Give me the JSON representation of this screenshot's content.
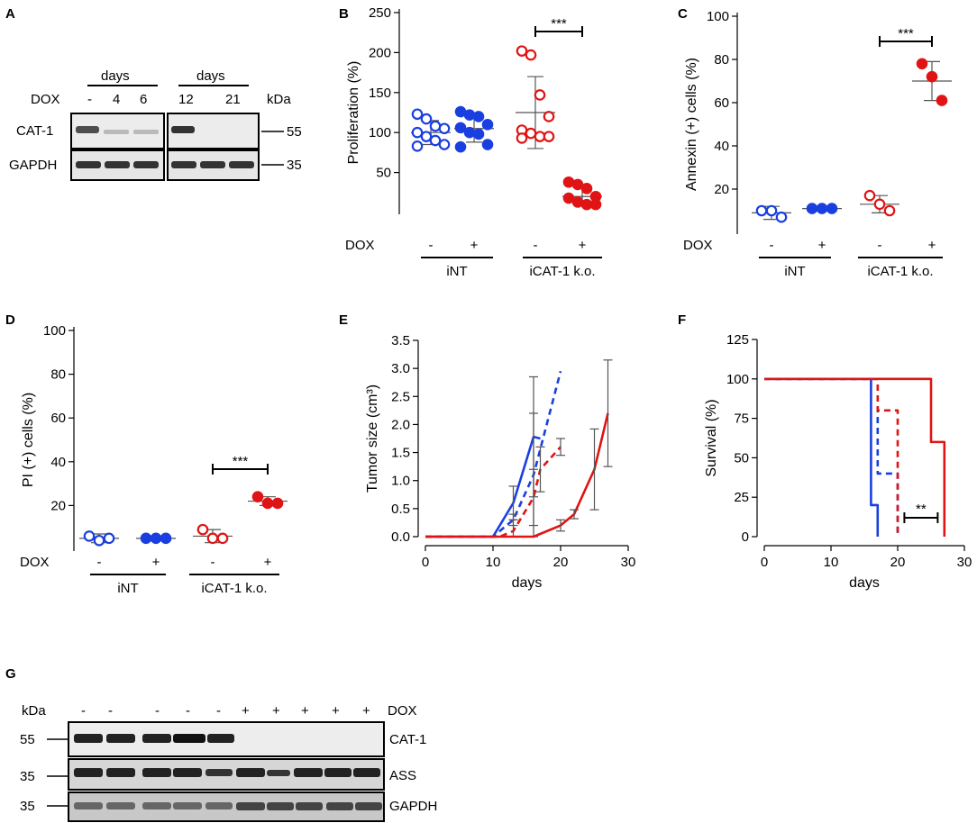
{
  "panel_labels": [
    "A",
    "B",
    "C",
    "D",
    "E",
    "F",
    "G"
  ],
  "colors": {
    "blue": "#1a3fe0",
    "red": "#e01414",
    "gray": "#555555"
  },
  "blot_a": {
    "header_left": "days",
    "header_right": "days",
    "dox_label": "DOX",
    "kda_label": "kDa",
    "lanes_left": [
      "-",
      "4",
      "6"
    ],
    "lanes_right": [
      "12",
      "21"
    ],
    "bands": [
      "CAT-1",
      "GAPDH"
    ],
    "kda_values": [
      "55",
      "35"
    ]
  },
  "blot_g": {
    "kda_label": "kDa",
    "dox_label": "DOX",
    "lanes": [
      "-",
      "-",
      "-",
      "-",
      "-",
      "+",
      "+",
      "+",
      "+",
      "+"
    ],
    "bands": [
      "CAT-1",
      "ASS",
      "GAPDH"
    ],
    "kda_values": [
      "55",
      "35",
      "35"
    ]
  },
  "chart_data": [
    {
      "panel": "B",
      "type": "scatter",
      "ylabel": "Proliferation (%)",
      "ylim": [
        0,
        250
      ],
      "yticks": [
        "50",
        "100",
        "150",
        "200",
        "250"
      ],
      "row_label": "DOX",
      "categories": [
        "-",
        "+",
        "-",
        "+"
      ],
      "groups": [
        "iNT",
        "iCAT-1 k.o."
      ],
      "series": [
        {
          "name": "iNT -",
          "filled": false,
          "color": "blue",
          "mean": 100,
          "sd": 15,
          "values": [
            123,
            117,
            108,
            105,
            100,
            95,
            90,
            85,
            83
          ]
        },
        {
          "name": "iNT +",
          "filled": true,
          "color": "blue",
          "mean": 105,
          "sd": 17,
          "values": [
            126,
            122,
            120,
            110,
            106,
            100,
            98,
            85,
            82
          ]
        },
        {
          "name": "iCAT-1 k.o. -",
          "filled": false,
          "color": "red",
          "mean": 125,
          "sd": 45,
          "values": [
            202,
            197,
            147,
            120,
            103,
            99,
            95,
            95,
            93
          ]
        },
        {
          "name": "iCAT-1 k.o. +",
          "filled": true,
          "color": "red",
          "mean": 20,
          "sd": 12,
          "values": [
            38,
            35,
            30,
            20,
            18,
            13,
            10,
            10
          ]
        }
      ],
      "significance": "***"
    },
    {
      "panel": "C",
      "type": "scatter",
      "ylabel": "Annexin  (+) cells (%)",
      "ylim": [
        0,
        100
      ],
      "yticks": [
        "20",
        "40",
        "60",
        "80",
        "100"
      ],
      "row_label": "DOX",
      "categories": [
        "-",
        "+",
        "-",
        "+"
      ],
      "groups": [
        "iNT",
        "iCAT-1 k.o."
      ],
      "series": [
        {
          "name": "iNT -",
          "filled": false,
          "color": "blue",
          "mean": 9,
          "sd": 3,
          "values": [
            10,
            10,
            7
          ]
        },
        {
          "name": "iNT +",
          "filled": true,
          "color": "blue",
          "mean": 11,
          "sd": 1,
          "values": [
            11,
            11,
            11
          ]
        },
        {
          "name": "iCAT-1 k.o. -",
          "filled": false,
          "color": "red",
          "mean": 13,
          "sd": 4,
          "values": [
            17,
            13,
            10
          ]
        },
        {
          "name": "iCAT-1 k.o. +",
          "filled": true,
          "color": "red",
          "mean": 70,
          "sd": 9,
          "values": [
            78,
            72,
            61
          ]
        }
      ],
      "significance": "***"
    },
    {
      "panel": "D",
      "type": "scatter",
      "ylabel": "PI (+) cells (%)",
      "ylim": [
        0,
        100
      ],
      "yticks": [
        "20",
        "40",
        "60",
        "80",
        "100"
      ],
      "row_label": "DOX",
      "categories": [
        "-",
        "+",
        "-",
        "+"
      ],
      "groups": [
        "iNT",
        "iCAT-1 k.o."
      ],
      "series": [
        {
          "name": "iNT -",
          "filled": false,
          "color": "blue",
          "mean": 5,
          "sd": 2,
          "values": [
            6,
            4,
            5
          ]
        },
        {
          "name": "iNT +",
          "filled": true,
          "color": "blue",
          "mean": 5,
          "sd": 1,
          "values": [
            5,
            5,
            5
          ]
        },
        {
          "name": "iCAT-1 k.o. -",
          "filled": false,
          "color": "red",
          "mean": 6,
          "sd": 3,
          "values": [
            9,
            5,
            5
          ]
        },
        {
          "name": "iCAT-1 k.o. +",
          "filled": true,
          "color": "red",
          "mean": 22,
          "sd": 2,
          "values": [
            24,
            21,
            21
          ]
        }
      ],
      "significance": "***"
    },
    {
      "panel": "E",
      "type": "line",
      "xlabel": "days",
      "ylabel": "Tumor size (cm³)",
      "xlim": [
        0,
        30
      ],
      "ylim": [
        0,
        3.5
      ],
      "xticks": [
        "0",
        "10",
        "20",
        "30"
      ],
      "yticks": [
        "0.0",
        "0.5",
        "1.0",
        "1.5",
        "2.0",
        "2.5",
        "3.0",
        "3.5"
      ],
      "series": [
        {
          "name": "iNT -",
          "color": "blue",
          "dash": false,
          "x": [
            0,
            10,
            13,
            16,
            17
          ],
          "y": [
            0,
            0,
            0.6,
            1.78,
            1.75
          ],
          "err": [
            0,
            0,
            0.3,
            1.07,
            0
          ]
        },
        {
          "name": "iNT +",
          "color": "blue",
          "dash": true,
          "x": [
            0,
            10,
            13,
            16,
            20
          ],
          "y": [
            0,
            0,
            0.3,
            1.1,
            2.95
          ],
          "err": [
            0,
            0,
            0.1,
            1.1,
            0
          ]
        },
        {
          "name": "iCAT-1 k.o. -",
          "color": "red",
          "dash": true,
          "x": [
            0,
            11,
            13,
            16,
            17,
            20
          ],
          "y": [
            0,
            0,
            0.1,
            0.7,
            1.2,
            1.6
          ],
          "err": [
            0,
            0,
            0.2,
            0.5,
            0.4,
            0.15
          ]
        },
        {
          "name": "iCAT-1 k.o. +",
          "color": "red",
          "dash": false,
          "x": [
            0,
            16,
            20,
            22,
            25,
            27
          ],
          "y": [
            0,
            0,
            0.2,
            0.4,
            1.2,
            2.2
          ],
          "err": [
            0,
            0,
            0.1,
            0.08,
            0.72,
            0.95
          ]
        }
      ]
    },
    {
      "panel": "F",
      "type": "line",
      "xlabel": "days",
      "ylabel": "Survival (%)",
      "xlim": [
        0,
        30
      ],
      "ylim": [
        0,
        125
      ],
      "xticks": [
        "0",
        "10",
        "20",
        "30"
      ],
      "yticks": [
        "0",
        "25",
        "50",
        "75",
        "100",
        "125"
      ],
      "series": [
        {
          "name": "iNT -",
          "color": "blue",
          "dash": false,
          "x": [
            0,
            16,
            16,
            17,
            17
          ],
          "y": [
            100,
            100,
            20,
            20,
            0
          ]
        },
        {
          "name": "iNT +",
          "color": "blue",
          "dash": true,
          "x": [
            0,
            17,
            17,
            20,
            20
          ],
          "y": [
            100,
            100,
            40,
            40,
            0
          ]
        },
        {
          "name": "iCAT-1 k.o. -",
          "color": "red",
          "dash": true,
          "x": [
            0,
            17,
            17,
            20,
            20
          ],
          "y": [
            100,
            100,
            80,
            80,
            0
          ]
        },
        {
          "name": "iCAT-1 k.o. +",
          "color": "red",
          "dash": false,
          "x": [
            0,
            25,
            25,
            27,
            27
          ],
          "y": [
            100,
            100,
            60,
            60,
            0
          ]
        }
      ],
      "significance": "**"
    }
  ]
}
